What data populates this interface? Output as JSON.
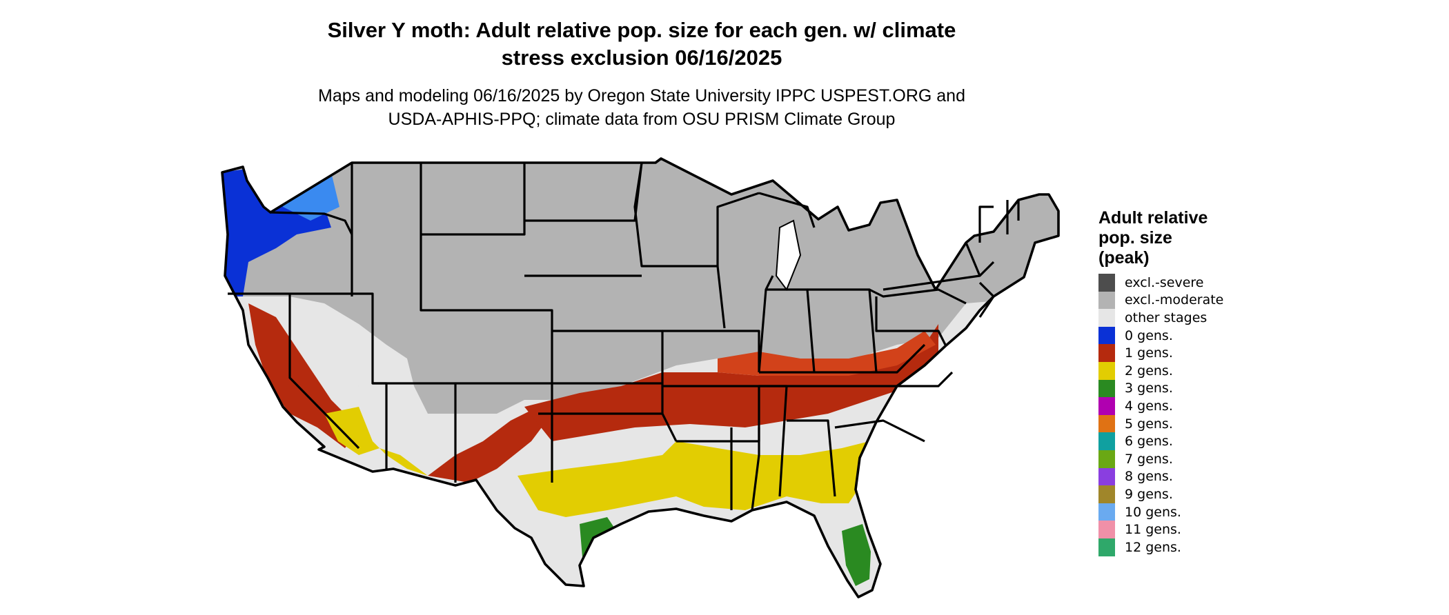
{
  "title": {
    "line1": "Silver Y moth: Adult relative pop. size for each gen. w/ climate",
    "line2": "stress exclusion 06/16/2025"
  },
  "subtitle": {
    "line1": "Maps and modeling 06/16/2025 by Oregon State University IPPC USPEST.ORG and",
    "line2": "USDA-APHIS-PPQ; climate data from OSU PRISM Climate Group"
  },
  "legend": {
    "title_line1": "Adult relative",
    "title_line2": "pop. size",
    "title_line3": "(peak)",
    "items": [
      {
        "label": "excl.-severe",
        "color": "#4d4d4d"
      },
      {
        "label": "excl.-moderate",
        "color": "#b3b3b3"
      },
      {
        "label": "other stages",
        "color": "#e6e6e6"
      },
      {
        "label": "0 gens.",
        "color": "#0a31d6"
      },
      {
        "label": "1 gens.",
        "color": "#b52a0e"
      },
      {
        "label": "2 gens.",
        "color": "#e2cd02"
      },
      {
        "label": "3 gens.",
        "color": "#2a8a21"
      },
      {
        "label": "4 gens.",
        "color": "#b000b0"
      },
      {
        "label": "5 gens.",
        "color": "#e07214"
      },
      {
        "label": "6 gens.",
        "color": "#10a0a0"
      },
      {
        "label": "7 gens.",
        "color": "#6aa814"
      },
      {
        "label": "8 gens.",
        "color": "#8a3ee0"
      },
      {
        "label": "9 gens.",
        "color": "#a0862a"
      },
      {
        "label": "10 gens.",
        "color": "#6aaaf0"
      },
      {
        "label": "11 gens.",
        "color": "#f090a8"
      },
      {
        "label": "12 gens.",
        "color": "#2fa86a"
      }
    ]
  }
}
